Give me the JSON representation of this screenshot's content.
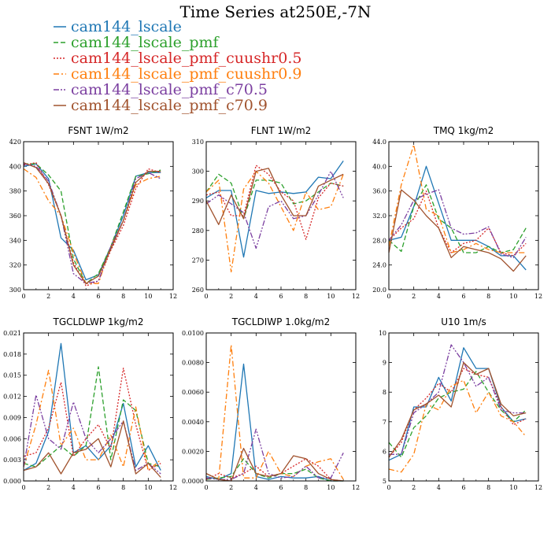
{
  "figure": {
    "title": "Time Series at250E,-7N"
  },
  "chart_data": [
    {
      "type": "line",
      "title": "FSNT   1W/m2",
      "xlim": [
        0,
        12
      ],
      "ylim": [
        300,
        420
      ],
      "xticks": [
        0,
        2,
        4,
        6,
        8,
        10,
        12
      ],
      "yticks": [
        "300",
        "320",
        "340",
        "360",
        "380",
        "400",
        "420"
      ],
      "x": [
        0,
        1,
        2,
        3,
        4,
        5,
        6,
        7,
        8,
        9,
        10,
        11
      ],
      "series": [
        {
          "name": "cam144_lscale",
          "values": [
            400,
            402,
            390,
            342,
            332,
            308,
            312,
            335,
            360,
            392,
            395,
            395
          ]
        },
        {
          "name": "cam144_lscale_pmf",
          "values": [
            402,
            402,
            393,
            380,
            325,
            305,
            313,
            335,
            363,
            392,
            394,
            397
          ]
        },
        {
          "name": "cam144_lscale_pmf_cuushr0.5",
          "values": [
            401,
            403,
            385,
            360,
            322,
            303,
            307,
            332,
            352,
            382,
            398,
            395
          ]
        },
        {
          "name": "cam144_lscale_pmf_cuushr0.9",
          "values": [
            398,
            391,
            372,
            360,
            330,
            305,
            305,
            335,
            356,
            385,
            390,
            392
          ]
        },
        {
          "name": "cam144_lscale_pmf_c70.5",
          "values": [
            402,
            400,
            388,
            360,
            313,
            305,
            307,
            335,
            356,
            390,
            395,
            390
          ]
        },
        {
          "name": "cam144_lscale_pmf_c70.9",
          "values": [
            403,
            399,
            386,
            360,
            320,
            305,
            311,
            333,
            356,
            387,
            396,
            396
          ]
        }
      ]
    },
    {
      "type": "line",
      "title": "FLNT   1W/m2",
      "xlim": [
        0,
        12
      ],
      "ylim": [
        260,
        310
      ],
      "xticks": [
        0,
        2,
        4,
        6,
        8,
        10,
        12
      ],
      "yticks": [
        "260",
        "270",
        "280",
        "290",
        "300",
        "310"
      ],
      "x": [
        0,
        1,
        2,
        3,
        4,
        5,
        6,
        7,
        8,
        9,
        10,
        11
      ],
      "series": [
        {
          "name": "cam144_lscale",
          "values": [
            291,
            293.5,
            293.5,
            271,
            293.5,
            292.5,
            293,
            292.5,
            293,
            298,
            297.5,
            303.5
          ]
        },
        {
          "name": "cam144_lscale_pmf",
          "values": [
            293,
            299,
            296,
            284,
            297,
            297,
            296,
            289,
            290,
            293,
            296,
            295
          ]
        },
        {
          "name": "cam144_lscale_pmf_cuushr0.5",
          "values": [
            292,
            293,
            285,
            285,
            302,
            299,
            293,
            290,
            277,
            291,
            296,
            295
          ]
        },
        {
          "name": "cam144_lscale_pmf_cuushr0.9",
          "values": [
            293,
            297,
            266,
            294,
            300,
            296,
            288,
            280,
            293,
            287,
            288,
            299
          ]
        },
        {
          "name": "cam144_lscale_pmf_c70.5",
          "values": [
            289,
            292,
            289,
            286,
            274,
            288,
            290,
            284,
            285,
            292,
            300,
            291
          ]
        },
        {
          "name": "cam144_lscale_pmf_c70.9",
          "values": [
            290,
            282,
            292,
            284,
            300,
            301,
            292,
            285,
            285,
            295,
            297,
            299
          ]
        }
      ]
    },
    {
      "type": "line",
      "title": "TMQ   1kg/m2",
      "xlim": [
        0,
        12
      ],
      "ylim": [
        20,
        44
      ],
      "xticks": [
        0,
        2,
        4,
        6,
        8,
        10,
        12
      ],
      "yticks": [
        "20.0",
        "24.0",
        "28.0",
        "32.0",
        "36.0",
        "40.0",
        "44.0"
      ],
      "x": [
        0,
        1,
        2,
        3,
        4,
        5,
        6,
        7,
        8,
        9,
        10,
        11
      ],
      "series": [
        {
          "name": "cam144_lscale",
          "values": [
            28.0,
            28.5,
            33.5,
            40.0,
            34.0,
            28.0,
            28.0,
            28.0,
            27.0,
            25.5,
            25.5,
            23.2
          ]
        },
        {
          "name": "cam144_lscale_pmf",
          "values": [
            28.0,
            26.2,
            33.5,
            37.0,
            31.5,
            30.0,
            26.0,
            26.0,
            27.0,
            26.0,
            26.5,
            30.0
          ]
        },
        {
          "name": "cam144_lscale_pmf_cuushr0.5",
          "values": [
            28.0,
            30.0,
            31.5,
            36.0,
            30.0,
            26.0,
            27.5,
            28.0,
            30.0,
            26.0,
            25.5,
            27.5
          ]
        },
        {
          "name": "cam144_lscale_pmf_cuushr0.9",
          "values": [
            27.0,
            37.0,
            43.5,
            33.0,
            32.0,
            26.0,
            26.5,
            27.5,
            26.5,
            26.0,
            26.0,
            26.0
          ]
        },
        {
          "name": "cam144_lscale_pmf_c70.5",
          "values": [
            28.0,
            30.5,
            34.5,
            35.5,
            36.2,
            30.0,
            29.0,
            29.2,
            30.2,
            25.8,
            25.2,
            28.5
          ]
        },
        {
          "name": "cam144_lscale_pmf_c70.9",
          "values": [
            26.0,
            36.2,
            34.5,
            32.0,
            30.0,
            25.2,
            27.0,
            26.5,
            26.0,
            25.0,
            23.0,
            25.5
          ]
        }
      ]
    },
    {
      "type": "line",
      "title": "TGCLDLWP   1kg/m2",
      "xlim": [
        0,
        12
      ],
      "ylim": [
        0,
        0.021
      ],
      "xticks": [
        0,
        2,
        4,
        6,
        8,
        10,
        12
      ],
      "yticks": [
        "0.000",
        "0.003",
        "0.006",
        "0.009",
        "0.012",
        "0.015",
        "0.018",
        "0.021"
      ],
      "x": [
        0,
        1,
        2,
        3,
        4,
        5,
        6,
        7,
        8,
        9,
        10,
        11
      ],
      "series": [
        {
          "name": "cam144_lscale",
          "values": [
            0.0015,
            0.0025,
            0.007,
            0.0195,
            0.004,
            0.005,
            0.003,
            0.005,
            0.011,
            0.002,
            0.005,
            0.0015
          ]
        },
        {
          "name": "cam144_lscale_pmf",
          "values": [
            0.0025,
            0.002,
            0.0035,
            0.005,
            0.0035,
            0.005,
            0.0162,
            0.003,
            0.0115,
            0.01,
            0.0025,
            0.002
          ]
        },
        {
          "name": "cam144_lscale_pmf_cuushr0.5",
          "values": [
            0.0035,
            0.004,
            0.0075,
            0.014,
            0.0035,
            0.006,
            0.008,
            0.0045,
            0.016,
            0.008,
            0.0015,
            0.0025
          ]
        },
        {
          "name": "cam144_lscale_pmf_cuushr0.9",
          "values": [
            0.002,
            0.008,
            0.0157,
            0.005,
            0.0075,
            0.003,
            0.003,
            0.0065,
            0.002,
            0.0105,
            0.0015,
            0.003
          ]
        },
        {
          "name": "cam144_lscale_pmf_c70.5",
          "values": [
            0.002,
            0.0122,
            0.006,
            0.0045,
            0.0112,
            0.006,
            0.004,
            0.006,
            0.0085,
            0.0015,
            0.0025,
            0.001
          ]
        },
        {
          "name": "cam144_lscale_pmf_c70.9",
          "values": [
            0.0015,
            0.002,
            0.004,
            0.001,
            0.004,
            0.0045,
            0.006,
            0.002,
            0.0085,
            0.001,
            0.0025,
            0.0005
          ]
        }
      ]
    },
    {
      "type": "line",
      "title": "TGCLDIWP   1.0kg/m2",
      "xlim": [
        0,
        12
      ],
      "ylim": [
        0,
        0.01
      ],
      "xticks": [
        0,
        2,
        4,
        6,
        8,
        10,
        12
      ],
      "yticks": [
        "0.0000",
        "0.0020",
        "0.0040",
        "0.0060",
        "0.0080",
        "0.0100"
      ],
      "x": [
        0,
        1,
        2,
        3,
        4,
        5,
        6,
        7,
        8,
        9,
        10,
        11
      ],
      "series": [
        {
          "name": "cam144_lscale",
          "values": [
            0.0003,
            0.0001,
            0.0005,
            0.0079,
            0.0003,
            0.0001,
            0.0003,
            0.0002,
            0.0002,
            0.0003,
            0.0,
            0.0
          ]
        },
        {
          "name": "cam144_lscale_pmf",
          "values": [
            0.0001,
            0.0002,
            0.0003,
            0.0015,
            0.0005,
            0.0002,
            0.0005,
            0.0005,
            0.0008,
            0.0002,
            0.0,
            0.0
          ]
        },
        {
          "name": "cam144_lscale_pmf_cuushr0.5",
          "values": [
            0.0001,
            0.0005,
            0.0002,
            0.0005,
            0.001,
            0.0003,
            0.0005,
            0.001,
            0.0015,
            0.001,
            0.0001,
            0.0
          ]
        },
        {
          "name": "cam144_lscale_pmf_cuushr0.9",
          "values": [
            0.0005,
            0.0001,
            0.0092,
            0.0002,
            0.0002,
            0.002,
            0.0005,
            0.0003,
            0.001,
            0.0013,
            0.0015,
            0.0001
          ]
        },
        {
          "name": "cam144_lscale_pmf_c70.5",
          "values": [
            0.0002,
            0.0001,
            0.0001,
            0.0005,
            0.0035,
            0.0005,
            0.0002,
            0.0003,
            0.001,
            0.0002,
            0.0002,
            0.0019
          ]
        },
        {
          "name": "cam144_lscale_pmf_c70.9",
          "values": [
            0.0005,
            0.0001,
            0.0,
            0.0022,
            0.0005,
            0.0003,
            0.0005,
            0.0017,
            0.0015,
            0.0005,
            0.0001,
            0.0
          ]
        }
      ]
    },
    {
      "type": "line",
      "title": "U10   1m/s",
      "xlim": [
        0,
        12
      ],
      "ylim": [
        5,
        10
      ],
      "xticks": [
        0,
        2,
        4,
        6,
        8,
        10,
        12
      ],
      "yticks": [
        "5",
        "6",
        "7",
        "8",
        "9",
        "10"
      ],
      "x": [
        0,
        1,
        2,
        3,
        4,
        5,
        6,
        7,
        8,
        9,
        10,
        11
      ],
      "series": [
        {
          "name": "cam144_lscale",
          "values": [
            5.7,
            5.9,
            7.5,
            7.5,
            8.5,
            7.7,
            9.5,
            8.8,
            8.8,
            7.5,
            7.0,
            7.1
          ]
        },
        {
          "name": "cam144_lscale_pmf",
          "values": [
            6.3,
            5.8,
            6.8,
            7.2,
            7.8,
            8.0,
            8.1,
            8.7,
            8.0,
            7.4,
            7.0,
            7.4
          ]
        },
        {
          "name": "cam144_lscale_pmf_cuushr0.5",
          "values": [
            5.8,
            6.3,
            7.4,
            7.8,
            8.3,
            8.0,
            8.8,
            8.6,
            8.5,
            7.5,
            6.9,
            7.1
          ]
        },
        {
          "name": "cam144_lscale_pmf_cuushr0.9",
          "values": [
            5.4,
            5.3,
            5.9,
            7.6,
            7.4,
            8.2,
            8.4,
            7.3,
            8.0,
            7.2,
            7.0,
            6.5
          ]
        },
        {
          "name": "cam144_lscale_pmf_c70.5",
          "values": [
            5.9,
            5.9,
            7.3,
            7.6,
            8.0,
            9.6,
            9.0,
            8.2,
            8.5,
            7.4,
            7.3,
            7.3
          ]
        },
        {
          "name": "cam144_lscale_pmf_c70.9",
          "values": [
            5.8,
            6.4,
            7.4,
            7.6,
            7.9,
            7.5,
            9.0,
            8.6,
            8.8,
            7.6,
            7.2,
            7.3
          ]
        }
      ]
    }
  ],
  "legend": {
    "position": "top-left",
    "entries": [
      {
        "name": "cam144_lscale",
        "color": "#1f77b4",
        "dash": "solid"
      },
      {
        "name": "cam144_lscale_pmf",
        "color": "#2ca02c",
        "dash": "longdash"
      },
      {
        "name": "cam144_lscale_pmf_cuushr0.5",
        "color": "#d62728",
        "dash": "dotted"
      },
      {
        "name": "cam144_lscale_pmf_cuushr0.9",
        "color": "#ff7f0e",
        "dash": "dashdot"
      },
      {
        "name": "cam144_lscale_pmf_c70.5",
        "color": "#7b3fa0",
        "dash": "dashdotdot"
      },
      {
        "name": "cam144_lscale_pmf_c70.9",
        "color": "#a0522d",
        "dash": "solid"
      }
    ]
  }
}
